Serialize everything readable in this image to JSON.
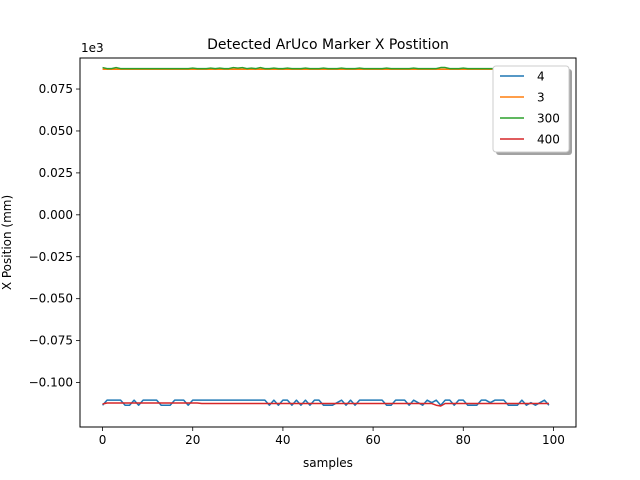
{
  "chart_data": {
    "type": "line",
    "title": "Detected ArUco Marker X Postition",
    "xlabel": "samples",
    "ylabel": "X Position (mm)",
    "offset_label": "1e3",
    "xlim": [
      -5,
      105
    ],
    "ylim": [
      -0.1265,
      0.0935
    ],
    "xticks": [
      0,
      20,
      40,
      60,
      80,
      100
    ],
    "xtick_labels": [
      "0",
      "20",
      "40",
      "60",
      "80",
      "100"
    ],
    "yticks": [
      0.075,
      0.05,
      0.025,
      0.0,
      -0.025,
      -0.05,
      -0.075,
      -0.1
    ],
    "ytick_labels": [
      "0.075",
      "0.050",
      "0.025",
      "0.000",
      "−0.025",
      "−0.050",
      "−0.075",
      "−0.100"
    ],
    "legend_position": "top-right",
    "series": [
      {
        "name": "4",
        "color": "#1f77b4",
        "x": [
          0,
          1,
          2,
          3,
          4,
          5,
          6,
          7,
          8,
          9,
          10,
          11,
          12,
          13,
          14,
          15,
          16,
          17,
          18,
          19,
          20,
          21,
          22,
          23,
          24,
          25,
          26,
          27,
          28,
          29,
          30,
          31,
          32,
          33,
          34,
          35,
          36,
          37,
          38,
          39,
          40,
          41,
          42,
          43,
          44,
          45,
          46,
          47,
          48,
          49,
          50,
          51,
          52,
          53,
          54,
          55,
          56,
          57,
          58,
          59,
          60,
          61,
          62,
          63,
          64,
          65,
          66,
          67,
          68,
          69,
          70,
          71,
          72,
          73,
          74,
          75,
          76,
          77,
          78,
          79,
          80,
          81,
          82,
          83,
          84,
          85,
          86,
          87,
          88,
          89,
          90,
          91,
          92,
          93,
          94,
          95,
          96,
          97,
          98,
          99
        ],
        "values": [
          -0.1135,
          -0.1105,
          -0.1105,
          -0.1105,
          -0.1105,
          -0.1135,
          -0.1135,
          -0.1105,
          -0.1135,
          -0.1105,
          -0.1105,
          -0.1105,
          -0.1105,
          -0.1135,
          -0.1135,
          -0.1135,
          -0.1105,
          -0.1105,
          -0.1105,
          -0.1135,
          -0.1105,
          -0.1105,
          -0.1105,
          -0.1105,
          -0.1105,
          -0.1105,
          -0.1105,
          -0.1105,
          -0.1105,
          -0.1105,
          -0.1105,
          -0.1105,
          -0.1105,
          -0.1105,
          -0.1105,
          -0.1105,
          -0.1105,
          -0.1135,
          -0.1105,
          -0.1135,
          -0.1105,
          -0.1105,
          -0.1135,
          -0.1105,
          -0.1135,
          -0.1105,
          -0.1135,
          -0.1105,
          -0.1105,
          -0.1135,
          -0.1135,
          -0.1135,
          -0.112,
          -0.1105,
          -0.1135,
          -0.1105,
          -0.1135,
          -0.1105,
          -0.1105,
          -0.1105,
          -0.1105,
          -0.1105,
          -0.1105,
          -0.1135,
          -0.1135,
          -0.1105,
          -0.1105,
          -0.1105,
          -0.1135,
          -0.1105,
          -0.112,
          -0.1135,
          -0.1105,
          -0.112,
          -0.1105,
          -0.1135,
          -0.1105,
          -0.1105,
          -0.1135,
          -0.1105,
          -0.1105,
          -0.1135,
          -0.1135,
          -0.1135,
          -0.1105,
          -0.1105,
          -0.112,
          -0.1105,
          -0.1105,
          -0.1105,
          -0.1135,
          -0.1135,
          -0.1135,
          -0.1105,
          -0.1135,
          -0.112,
          -0.1135,
          -0.112,
          -0.1105,
          -0.1135
        ]
      },
      {
        "name": "3",
        "color": "#ff7f0e",
        "x": [
          0,
          99
        ],
        "values": [
          0.0868,
          0.0868
        ]
      },
      {
        "name": "300",
        "color": "#2ca02c",
        "x": [
          0,
          1,
          2,
          3,
          4,
          5,
          6,
          7,
          8,
          9,
          10,
          11,
          12,
          13,
          14,
          15,
          16,
          17,
          18,
          19,
          20,
          21,
          22,
          23,
          24,
          25,
          26,
          27,
          28,
          29,
          30,
          31,
          32,
          33,
          34,
          35,
          36,
          37,
          38,
          39,
          40,
          41,
          42,
          43,
          44,
          45,
          46,
          47,
          48,
          49,
          50,
          51,
          52,
          53,
          54,
          55,
          56,
          57,
          58,
          59,
          60,
          61,
          62,
          63,
          64,
          65,
          66,
          67,
          68,
          69,
          70,
          71,
          72,
          73,
          74,
          75,
          76,
          77,
          78,
          79,
          80,
          81,
          82,
          83,
          84,
          85,
          86,
          87,
          88,
          89,
          90,
          91,
          92,
          93,
          94,
          95,
          96,
          97,
          98,
          99
        ],
        "values": [
          0.0878,
          0.0872,
          0.0872,
          0.0878,
          0.0872,
          0.0872,
          0.0872,
          0.0872,
          0.0872,
          0.0872,
          0.0872,
          0.0872,
          0.0872,
          0.0872,
          0.0872,
          0.0872,
          0.0872,
          0.0872,
          0.0872,
          0.0872,
          0.0875,
          0.0872,
          0.0872,
          0.0872,
          0.0875,
          0.0872,
          0.0875,
          0.0872,
          0.0872,
          0.0878,
          0.0875,
          0.0878,
          0.0872,
          0.0875,
          0.0872,
          0.0878,
          0.0872,
          0.0872,
          0.0875,
          0.0872,
          0.0872,
          0.0875,
          0.0872,
          0.0872,
          0.0872,
          0.0875,
          0.0872,
          0.0872,
          0.0872,
          0.0875,
          0.0872,
          0.0872,
          0.0872,
          0.0875,
          0.0872,
          0.0872,
          0.0872,
          0.0875,
          0.0872,
          0.0872,
          0.0872,
          0.0872,
          0.0872,
          0.0875,
          0.0872,
          0.0872,
          0.0872,
          0.0872,
          0.0872,
          0.0875,
          0.0872,
          0.0872,
          0.0872,
          0.0872,
          0.0872,
          0.0878,
          0.0878,
          0.0872,
          0.0872,
          0.0872,
          0.0875,
          0.0872,
          0.0872,
          0.0872,
          0.0872,
          0.0872,
          0.0872,
          0.0872,
          0.0872,
          0.0872,
          0.0872,
          0.0872,
          0.0872,
          0.0872,
          0.0872,
          0.0872,
          0.0872,
          0.0872,
          0.0872,
          0.0872
        ]
      },
      {
        "name": "400",
        "color": "#d62728",
        "x": [
          0,
          1,
          2,
          3,
          4,
          5,
          6,
          7,
          8,
          9,
          10,
          11,
          12,
          13,
          14,
          15,
          16,
          17,
          18,
          19,
          20,
          21,
          22,
          23,
          24,
          25,
          26,
          27,
          28,
          29,
          30,
          31,
          32,
          33,
          34,
          35,
          36,
          37,
          38,
          39,
          40,
          41,
          42,
          43,
          44,
          45,
          46,
          47,
          48,
          49,
          50,
          51,
          52,
          53,
          54,
          55,
          56,
          57,
          58,
          59,
          60,
          61,
          62,
          63,
          64,
          65,
          66,
          67,
          68,
          69,
          70,
          71,
          72,
          73,
          74,
          75,
          76,
          77,
          78,
          79,
          80,
          81,
          82,
          83,
          84,
          85,
          86,
          87,
          88,
          89,
          90,
          91,
          92,
          93,
          94,
          95,
          96,
          97,
          98,
          99
        ],
        "values": [
          -0.1128,
          -0.1122,
          -0.1122,
          -0.1122,
          -0.1122,
          -0.1122,
          -0.1122,
          -0.1122,
          -0.1122,
          -0.1122,
          -0.1122,
          -0.1122,
          -0.1122,
          -0.1122,
          -0.1122,
          -0.1122,
          -0.1122,
          -0.1122,
          -0.1122,
          -0.1122,
          -0.1122,
          -0.1122,
          -0.1125,
          -0.1125,
          -0.1125,
          -0.1125,
          -0.1125,
          -0.1125,
          -0.1125,
          -0.1125,
          -0.1125,
          -0.1125,
          -0.1125,
          -0.1125,
          -0.1125,
          -0.1125,
          -0.1125,
          -0.1125,
          -0.1125,
          -0.1125,
          -0.1125,
          -0.1125,
          -0.1125,
          -0.1125,
          -0.1125,
          -0.1125,
          -0.1125,
          -0.1125,
          -0.1125,
          -0.1125,
          -0.1125,
          -0.1125,
          -0.1125,
          -0.1125,
          -0.1125,
          -0.1125,
          -0.1125,
          -0.1125,
          -0.1125,
          -0.1125,
          -0.1125,
          -0.1125,
          -0.1125,
          -0.1125,
          -0.1125,
          -0.1125,
          -0.1125,
          -0.1125,
          -0.1125,
          -0.1125,
          -0.1125,
          -0.1125,
          -0.1125,
          -0.1125,
          -0.1135,
          -0.114,
          -0.1125,
          -0.1125,
          -0.1125,
          -0.1125,
          -0.1125,
          -0.1125,
          -0.1125,
          -0.1125,
          -0.1125,
          -0.1125,
          -0.1125,
          -0.1125,
          -0.1125,
          -0.1125,
          -0.1125,
          -0.1125,
          -0.1125,
          -0.1125,
          -0.1125,
          -0.1125,
          -0.1125,
          -0.1125,
          -0.1125,
          -0.1125
        ]
      }
    ]
  }
}
